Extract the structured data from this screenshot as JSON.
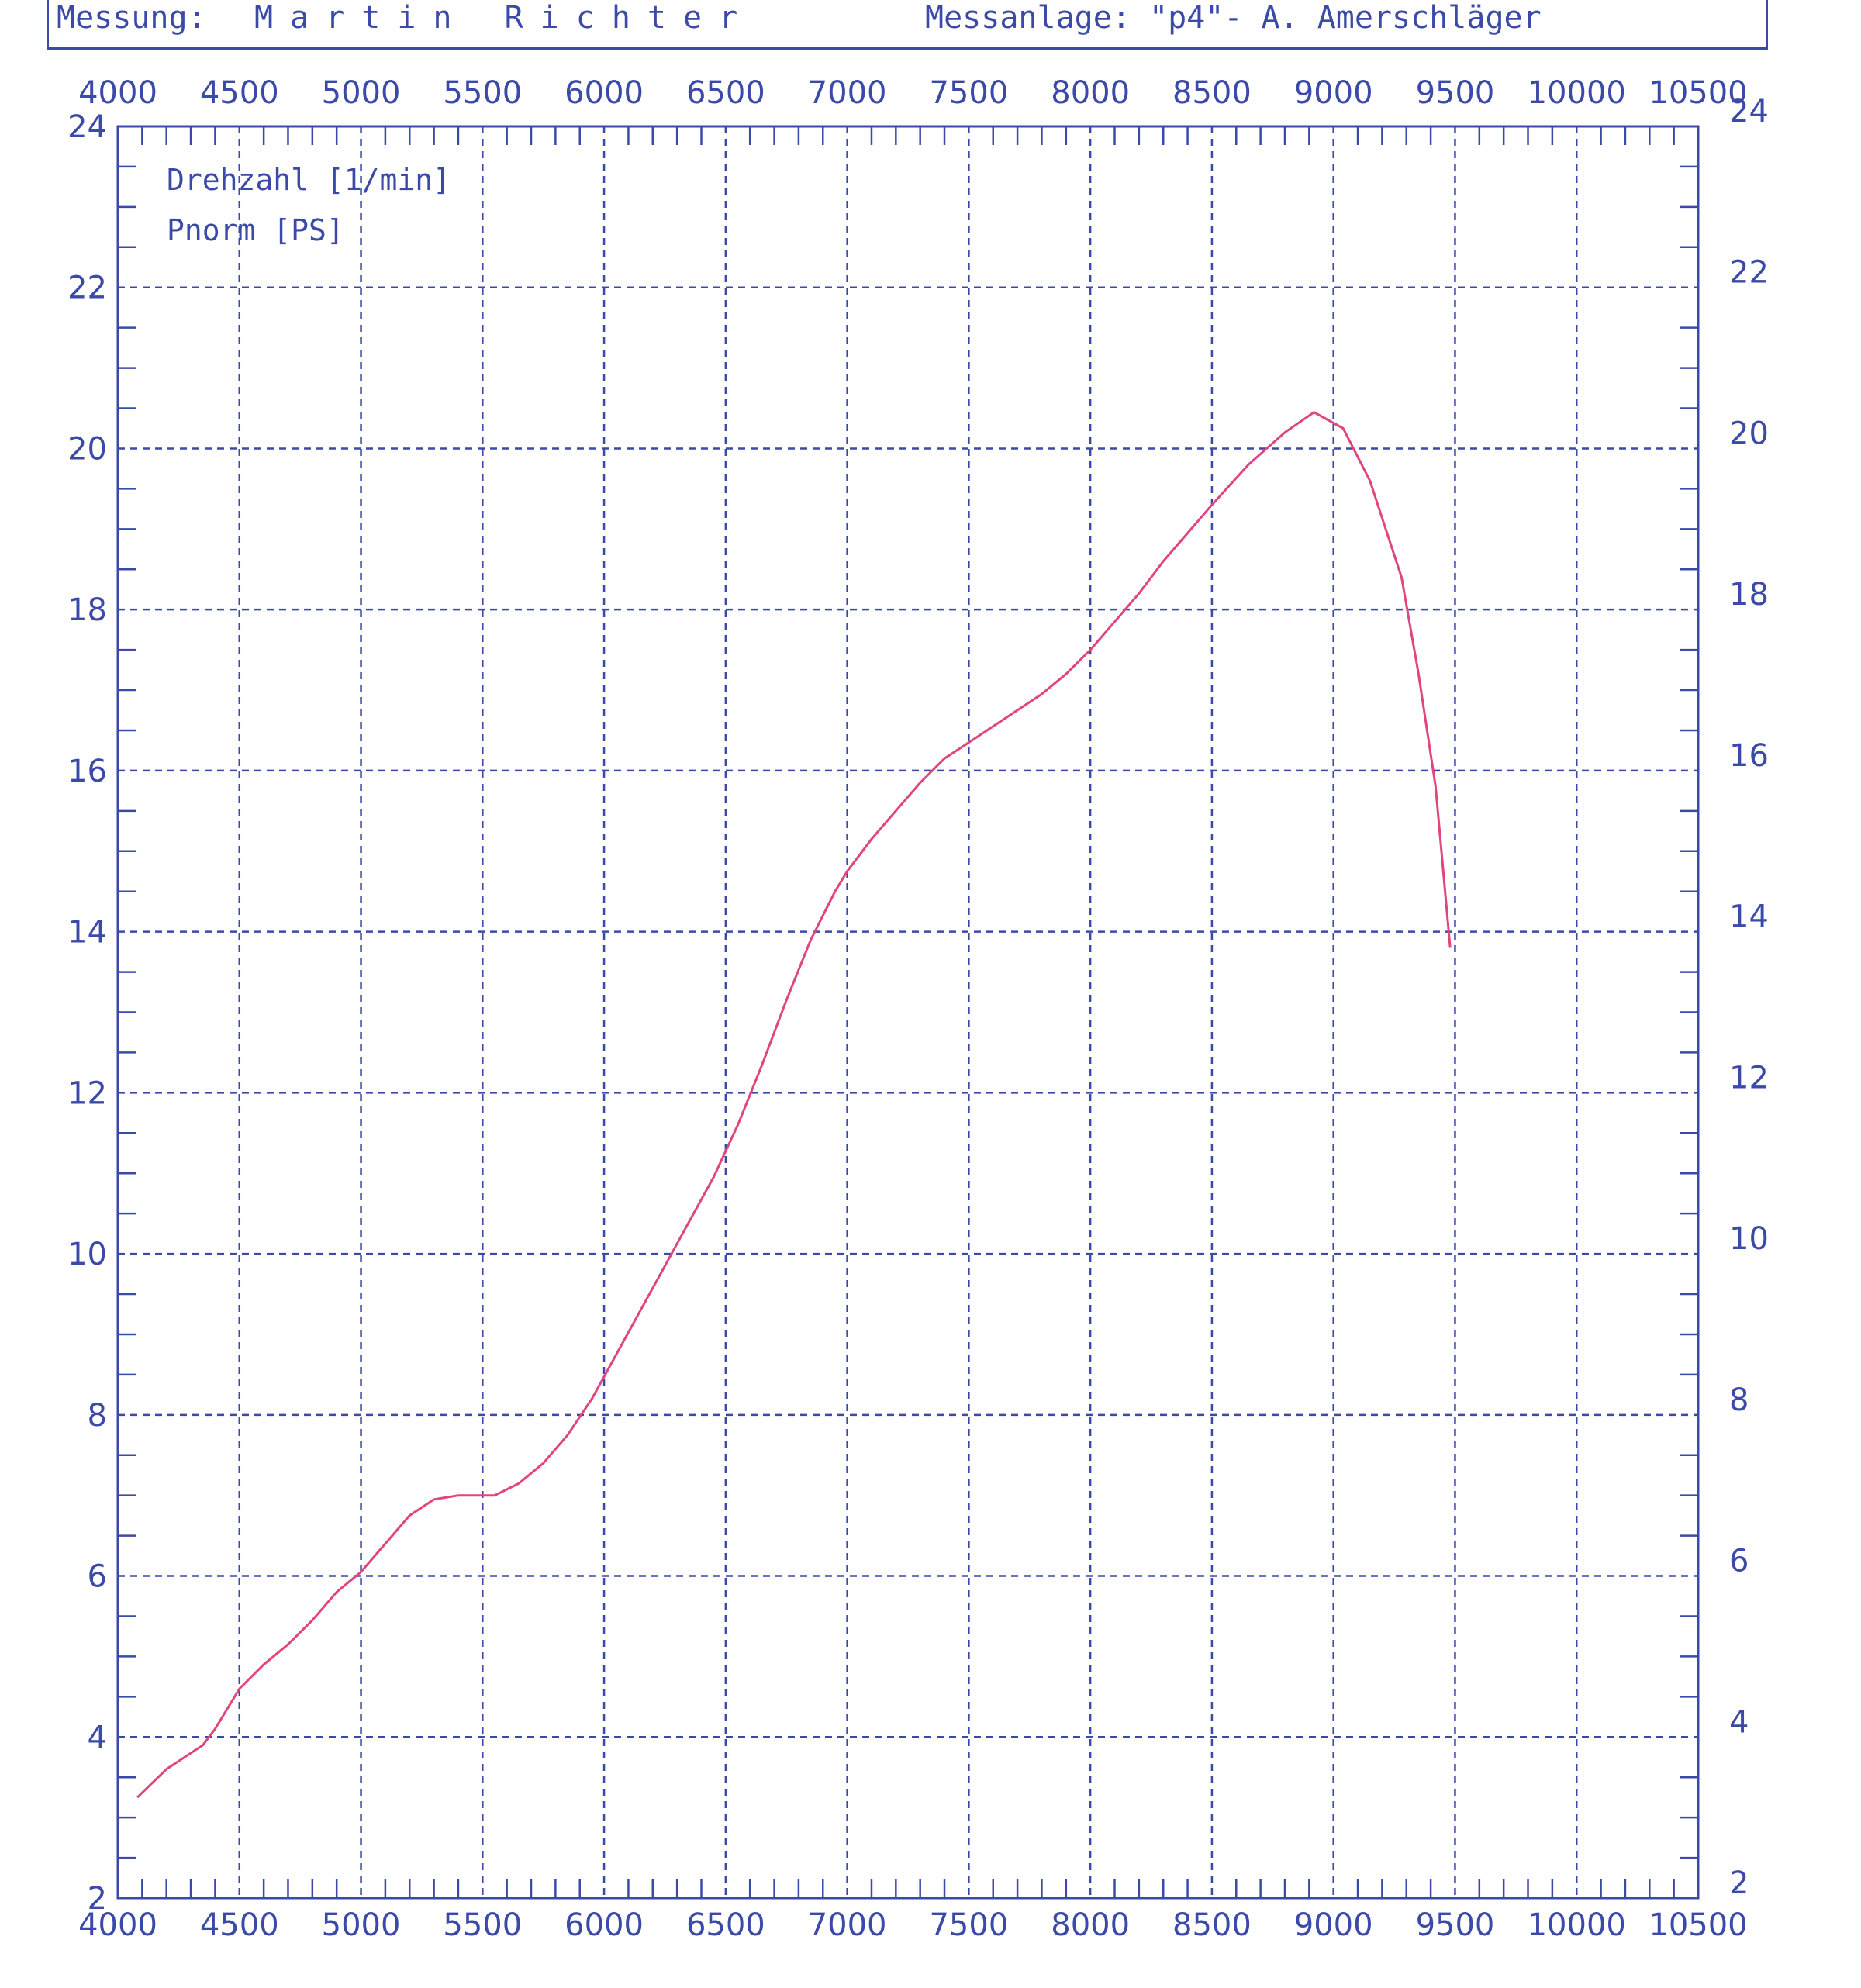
{
  "header": {
    "label": "Messung:",
    "name": "Martin Richter",
    "setup": "Messanlage: \"p4\"- A. Amerschläger"
  },
  "colors": {
    "axis": "#3b4aa8",
    "grid": "#3b4aa8",
    "curve": "#e0457f"
  },
  "chart_data": {
    "type": "line",
    "legend": [
      "Drehzahl [1/min]",
      "Pnorm [PS]"
    ],
    "xlim": [
      4000,
      10500
    ],
    "ylim": [
      2,
      24
    ],
    "x_ticks": [
      4000,
      4500,
      5000,
      5500,
      6000,
      6500,
      7000,
      7500,
      8000,
      8500,
      9000,
      9500,
      10000,
      10500
    ],
    "y_ticks": [
      2,
      4,
      6,
      8,
      10,
      12,
      14,
      16,
      18,
      20,
      22,
      24
    ],
    "grid": true,
    "series": [
      {
        "name": "Pnorm [PS]",
        "x": [
          4080,
          4200,
          4350,
          4400,
          4500,
          4600,
          4700,
          4800,
          4900,
          5000,
          5100,
          5200,
          5300,
          5400,
          5500,
          5550,
          5650,
          5750,
          5850,
          5950,
          6050,
          6150,
          6250,
          6350,
          6450,
          6550,
          6650,
          6750,
          6850,
          6950,
          7000,
          7100,
          7200,
          7300,
          7400,
          7500,
          7650,
          7800,
          7900,
          8000,
          8100,
          8200,
          8300,
          8400,
          8500,
          8650,
          8800,
          8920,
          9040,
          9150,
          9280,
          9350,
          9420,
          9480
        ],
        "y": [
          3.25,
          3.6,
          3.9,
          4.1,
          4.6,
          4.9,
          5.15,
          5.45,
          5.8,
          6.05,
          6.4,
          6.75,
          6.95,
          7.0,
          7.0,
          7.0,
          7.15,
          7.4,
          7.75,
          8.2,
          8.75,
          9.3,
          9.85,
          10.4,
          10.95,
          11.6,
          12.35,
          13.15,
          13.9,
          14.5,
          14.75,
          15.15,
          15.5,
          15.85,
          16.15,
          16.35,
          16.65,
          16.95,
          17.2,
          17.5,
          17.85,
          18.2,
          18.6,
          18.95,
          19.3,
          19.8,
          20.2,
          20.45,
          20.25,
          19.6,
          18.4,
          17.2,
          15.8,
          13.8
        ]
      }
    ]
  }
}
